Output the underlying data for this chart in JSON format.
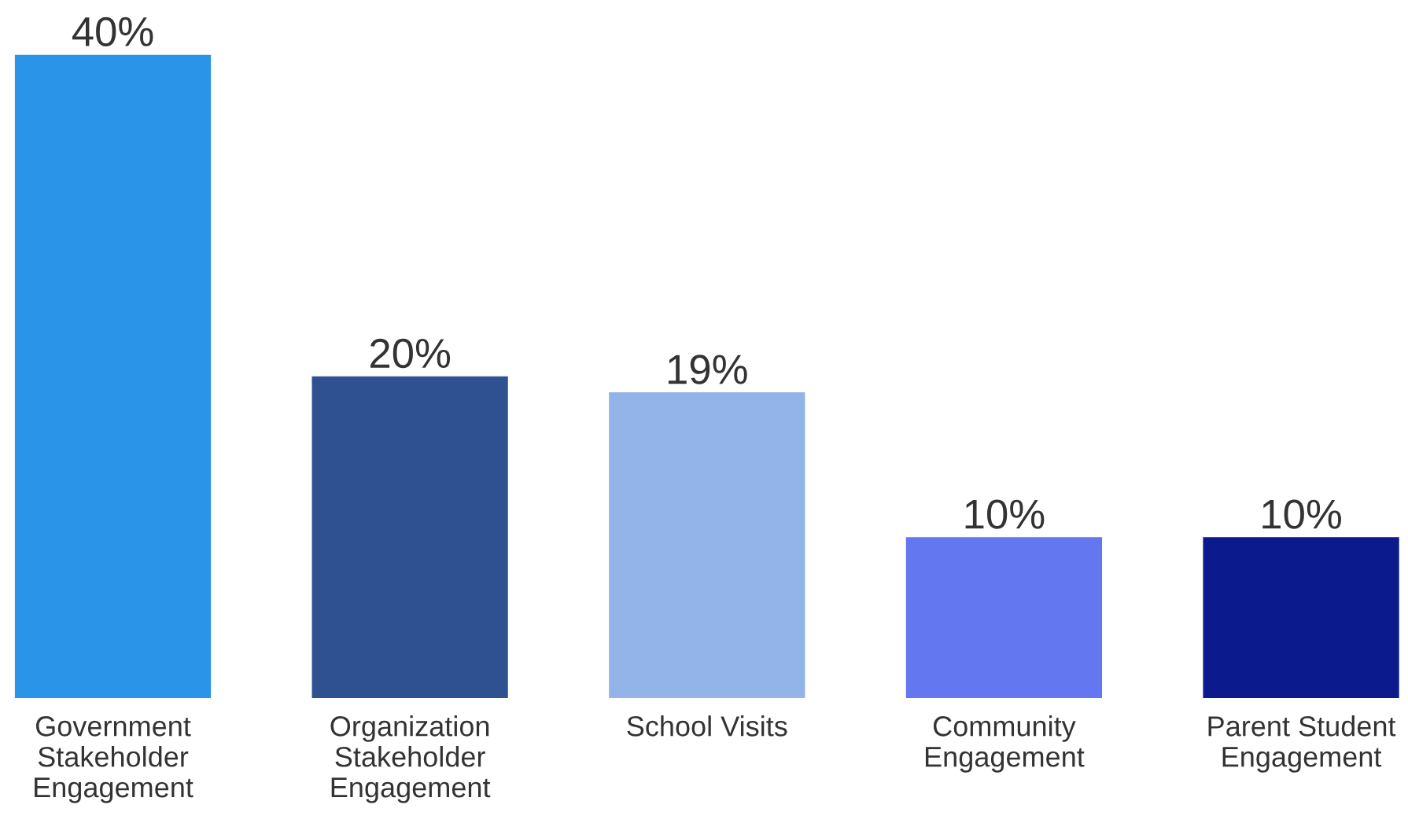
{
  "chart_data": {
    "type": "bar",
    "categories": [
      "Government\nStakeholder\nEngagement",
      "Organization\nStakeholder\nEngagement",
      "School Visits",
      "Community\nEngagement",
      "Parent Student\nEngagement"
    ],
    "values": [
      40,
      20,
      19,
      10,
      10
    ],
    "colors": [
      "#2a94e8",
      "#2f5192",
      "#93b4e8",
      "#6378f0",
      "#0b1a8c"
    ],
    "value_labels": [
      "40%",
      "20%",
      "19%",
      "10%",
      "10%"
    ],
    "grid": false,
    "legend": false
  }
}
